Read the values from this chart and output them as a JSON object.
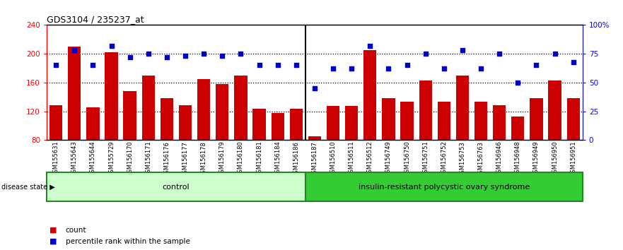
{
  "title": "GDS3104 / 235237_at",
  "samples": [
    "GSM155631",
    "GSM155643",
    "GSM155644",
    "GSM155729",
    "GSM156170",
    "GSM156171",
    "GSM156176",
    "GSM156177",
    "GSM156178",
    "GSM156179",
    "GSM156180",
    "GSM156181",
    "GSM156184",
    "GSM156186",
    "GSM156187",
    "GSM156510",
    "GSM156511",
    "GSM156512",
    "GSM156749",
    "GSM156750",
    "GSM156751",
    "GSM156752",
    "GSM156753",
    "GSM156763",
    "GSM156946",
    "GSM156948",
    "GSM156949",
    "GSM156950",
    "GSM156951"
  ],
  "counts": [
    128,
    210,
    125,
    202,
    148,
    170,
    138,
    128,
    165,
    158,
    170,
    123,
    118,
    123,
    85,
    127,
    127,
    205,
    138,
    133,
    163,
    133,
    170,
    133,
    128,
    113,
    138,
    163,
    138
  ],
  "percentiles": [
    65,
    78,
    65,
    82,
    72,
    75,
    72,
    73,
    75,
    73,
    75,
    65,
    65,
    65,
    45,
    62,
    62,
    82,
    62,
    65,
    75,
    62,
    78,
    62,
    75,
    50,
    65,
    75,
    68
  ],
  "control_count": 14,
  "ylim_left": [
    80,
    240
  ],
  "ylim_right": [
    0,
    100
  ],
  "yticks_left": [
    80,
    120,
    160,
    200,
    240
  ],
  "yticks_right": [
    0,
    25,
    50,
    75,
    100
  ],
  "ytick_labels_right": [
    "0",
    "25",
    "50",
    "75",
    "100%"
  ],
  "bar_color": "#cc0000",
  "scatter_color": "#0000cc",
  "control_label": "control",
  "disease_label": "insulin-resistant polycystic ovary syndrome",
  "control_bg": "#ccffcc",
  "disease_bg": "#33cc33",
  "axis_bg": "#ffffff",
  "disease_state_label": "disease state"
}
